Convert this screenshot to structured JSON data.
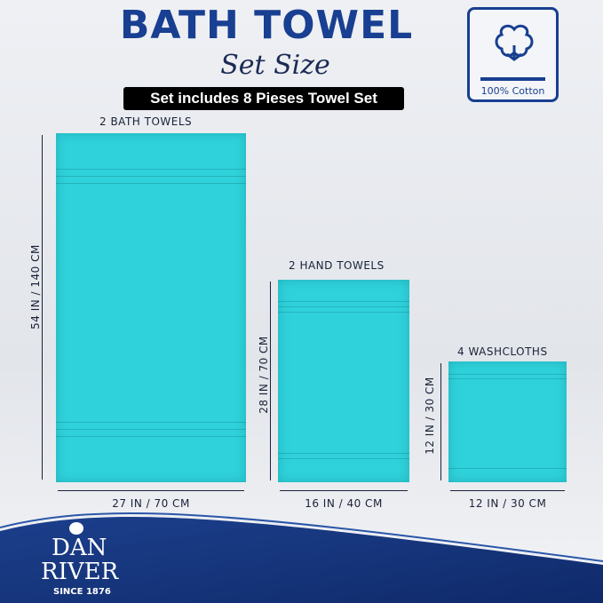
{
  "header": {
    "title": "BATH TOWEL",
    "script_subtitle": "Set Size",
    "banner": "Set includes 8 Pieses Towel Set"
  },
  "badge": {
    "icon": "cotton-flower-icon",
    "text": "100% Cotton"
  },
  "towels": [
    {
      "label": "2 BATH TOWELS",
      "height": "54 IN / 140 CM",
      "width": "27 IN / 70 CM"
    },
    {
      "label": "2 HAND TOWELS",
      "height": "28 IN / 70 CM",
      "width": "16 IN / 40 CM"
    },
    {
      "label": "4 WASHCLOTHS",
      "height": "12 IN / 30 CM",
      "width": "12 IN / 30 CM"
    }
  ],
  "brand": {
    "name_line1": "DAN",
    "name_line2": "RIVER",
    "since": "SINCE 1876"
  },
  "colors": {
    "brand_blue": "#183f91",
    "towel": "#2fd2db"
  }
}
